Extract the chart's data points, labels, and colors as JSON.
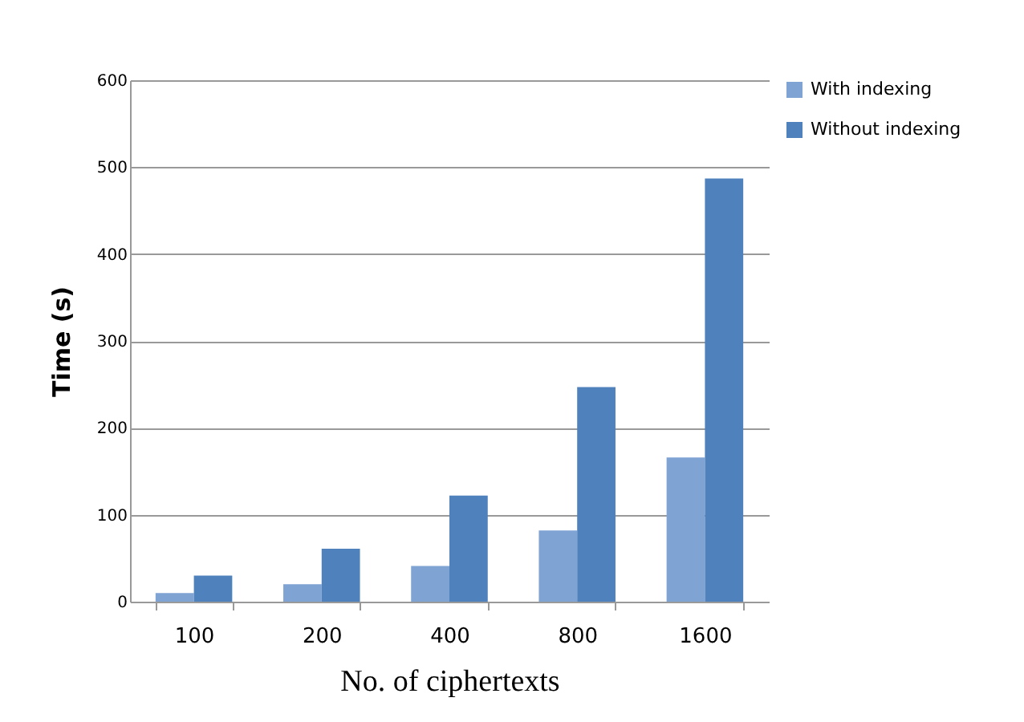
{
  "chart_data": {
    "type": "bar",
    "xlabel": "No. of ciphertexts",
    "ylabel": "Time (s)",
    "categories": [
      "100",
      "200",
      "400",
      "800",
      "1600"
    ],
    "series": [
      {
        "name": "With  indexing",
        "color": "#7fa3d3",
        "values": [
          10,
          20,
          41,
          82,
          166
        ]
      },
      {
        "name": "Without  indexing",
        "color": "#4f81bd",
        "values": [
          30,
          61,
          122,
          247,
          487
        ]
      }
    ],
    "ylim": [
      0,
      600
    ],
    "yticks": [
      0,
      100,
      200,
      300,
      400,
      500,
      600
    ],
    "grid": "y",
    "legend": "right"
  }
}
